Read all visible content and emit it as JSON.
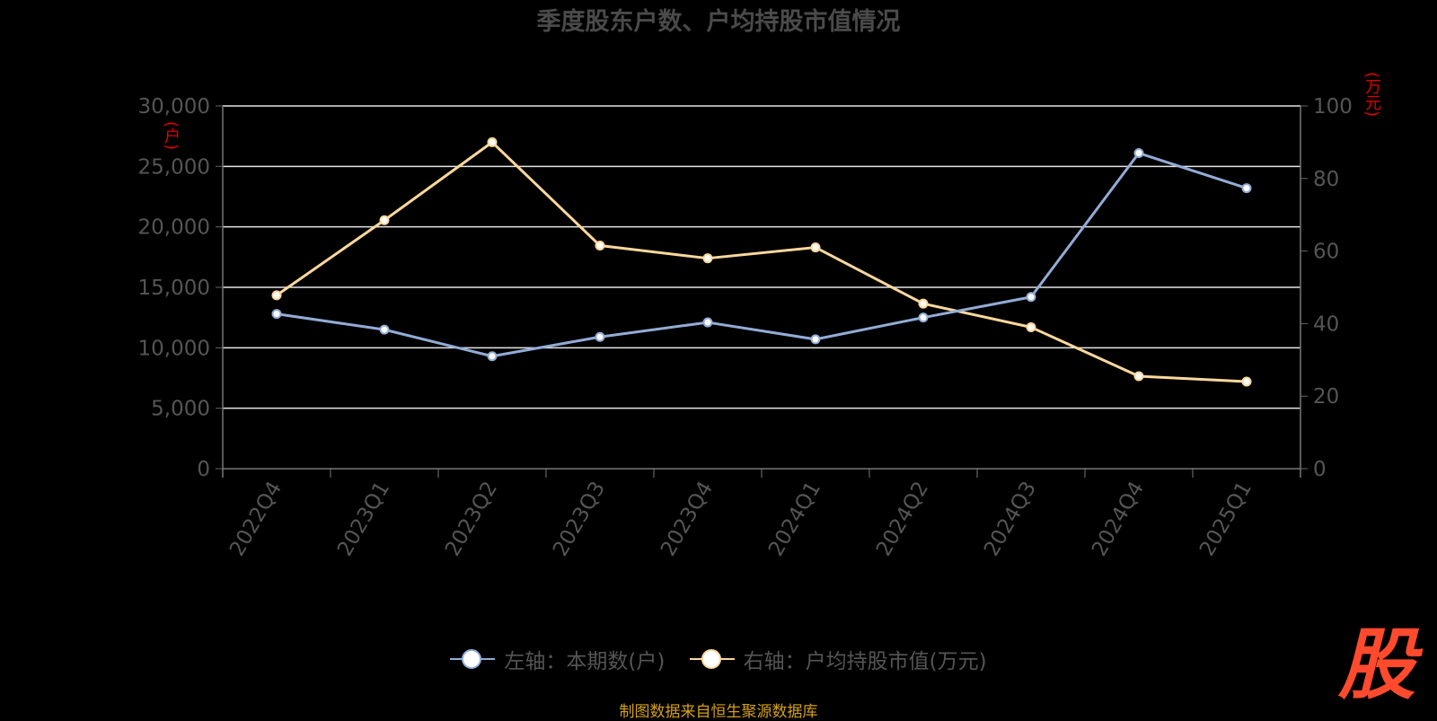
{
  "title": "季度股东户数、户均持股市值情况",
  "source": "制图数据来自恒生聚源数据库",
  "logo_text": "股",
  "left_unit": "(户)",
  "right_unit": "(万元)",
  "legend": [
    {
      "label": "左轴：本期数(户)",
      "color": "#93acd6"
    },
    {
      "label": "右轴：户均持股市值(万元)",
      "color": "#fbd89c"
    }
  ],
  "chart_data": {
    "type": "line",
    "categories": [
      "2022Q4",
      "2023Q1",
      "2023Q2",
      "2023Q3",
      "2023Q4",
      "2024Q1",
      "2024Q2",
      "2024Q3",
      "2024Q4",
      "2025Q1"
    ],
    "left_axis": {
      "min": 0,
      "max": 30000,
      "ticks": [
        0,
        5000,
        10000,
        15000,
        20000,
        25000,
        30000
      ],
      "tick_labels": [
        "0",
        "5,000",
        "10,000",
        "15,000",
        "20,000",
        "25,000",
        "30,000"
      ]
    },
    "right_axis": {
      "min": 0,
      "max": 100,
      "ticks": [
        0,
        20,
        40,
        60,
        80,
        100
      ],
      "tick_labels": [
        "0",
        "20",
        "40",
        "60",
        "80",
        "100"
      ]
    },
    "grid": true,
    "series": [
      {
        "name": "左轴：本期数(户)",
        "axis": "left",
        "color": "#93acd6",
        "values": [
          12800,
          11500,
          9300,
          10900,
          12100,
          10700,
          12500,
          14200,
          26100,
          23200
        ]
      },
      {
        "name": "右轴：户均持股市值(万元)",
        "axis": "right",
        "color": "#fbd89c",
        "values": [
          47.8,
          68.5,
          90.0,
          61.5,
          58.0,
          61.0,
          45.5,
          39.0,
          25.5,
          24.0
        ]
      }
    ]
  }
}
